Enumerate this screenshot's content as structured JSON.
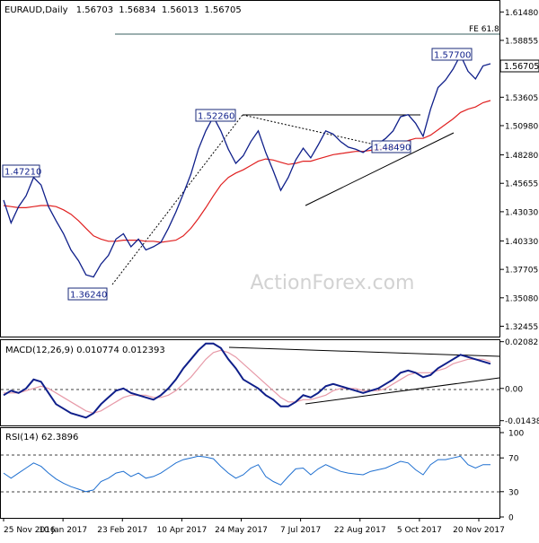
{
  "chart_data": [
    {
      "type": "line",
      "panel": "price",
      "title": "EURAUD,Daily",
      "ohlc": {
        "open": "1.56703",
        "high": "1.56834",
        "low": "1.56013",
        "close": "1.56705"
      },
      "last_price_label": "1.56705",
      "ylim": [
        1.315,
        1.625
      ],
      "y_ticks": [
        "1.61480",
        "1.58855",
        "1.56230",
        "1.53605",
        "1.50980",
        "1.48280",
        "1.45655",
        "1.43030",
        "1.40330",
        "1.37705",
        "1.35080",
        "1.32455"
      ],
      "x_ticks": [
        "25 Nov 2016",
        "10 Jan 2017",
        "23 Feb 2017",
        "10 Apr 2017",
        "24 May 2017",
        "7 Jul 2017",
        "22 Aug 2017",
        "5 Oct 2017",
        "20 Nov 2017"
      ],
      "x": [
        0,
        4,
        8,
        12,
        16,
        20,
        24,
        28,
        32,
        36,
        40,
        44,
        48,
        52,
        56,
        60,
        64,
        68,
        72,
        76,
        80,
        84,
        88,
        92,
        96,
        100,
        104,
        108,
        112,
        116,
        120,
        124,
        128,
        132,
        136,
        140,
        144,
        148,
        152,
        156,
        160,
        164,
        168,
        172,
        176,
        180,
        184,
        188,
        192,
        196,
        200,
        204,
        208,
        212,
        216,
        220,
        224,
        228,
        232,
        236,
        240,
        244,
        248,
        252,
        256,
        260
      ],
      "series": [
        {
          "values": [
            1.441,
            1.42,
            1.435,
            1.445,
            1.462,
            1.455,
            1.435,
            1.422,
            1.41,
            1.395,
            1.385,
            1.372,
            1.37,
            1.382,
            1.39,
            1.405,
            1.41,
            1.398,
            1.405,
            1.395,
            1.398,
            1.402,
            1.415,
            1.43,
            1.447,
            1.465,
            1.488,
            1.505,
            1.518,
            1.505,
            1.488,
            1.475,
            1.482,
            1.495,
            1.505,
            1.485,
            1.468,
            1.45,
            1.462,
            1.478,
            1.489,
            1.48,
            1.492,
            1.505,
            1.502,
            1.495,
            1.49,
            1.488,
            1.485,
            1.49,
            1.493,
            1.498,
            1.505,
            1.518,
            1.52,
            1.512,
            1.5,
            1.525,
            1.545,
            1.552,
            1.562,
            1.575,
            1.56,
            1.553,
            1.565,
            1.567
          ]
        },
        {
          "values": [
            1.436,
            1.435,
            1.434,
            1.434,
            1.435,
            1.436,
            1.436,
            1.435,
            1.432,
            1.428,
            1.422,
            1.415,
            1.408,
            1.405,
            1.403,
            1.403,
            1.404,
            1.404,
            1.404,
            1.403,
            1.403,
            1.402,
            1.403,
            1.404,
            1.408,
            1.415,
            1.424,
            1.434,
            1.445,
            1.455,
            1.462,
            1.466,
            1.469,
            1.473,
            1.477,
            1.479,
            1.478,
            1.476,
            1.474,
            1.475,
            1.477,
            1.477,
            1.479,
            1.481,
            1.483,
            1.484,
            1.485,
            1.486,
            1.486,
            1.487,
            1.488,
            1.489,
            1.49,
            1.493,
            1.496,
            1.498,
            1.498,
            1.501,
            1.506,
            1.511,
            1.516,
            1.522,
            1.525,
            1.527,
            1.531,
            1.533
          ]
        }
      ],
      "annotations": [
        "1.47210",
        "1.36240",
        "1.52260",
        "1.57700",
        "1.48490",
        "FE 61.8"
      ]
    },
    {
      "type": "line",
      "panel": "macd",
      "title": "MACD(12,26,9) 0.010774 0.012393",
      "ylim": [
        -0.0165,
        0.0215
      ],
      "y_ticks": [
        "0.020827",
        "0.00",
        "-0.014386"
      ],
      "series": [
        {
          "values": [
            -0.003,
            -0.001,
            -0.002,
            0.0,
            0.004,
            0.003,
            -0.002,
            -0.007,
            -0.009,
            -0.011,
            -0.012,
            -0.013,
            -0.011,
            -0.007,
            -0.004,
            -0.001,
            0.0,
            -0.002,
            -0.003,
            -0.004,
            -0.005,
            -0.003,
            0.0,
            0.004,
            0.009,
            0.013,
            0.017,
            0.02,
            0.02,
            0.018,
            0.013,
            0.009,
            0.004,
            0.002,
            0.0,
            -0.003,
            -0.005,
            -0.008,
            -0.008,
            -0.006,
            -0.003,
            -0.004,
            -0.002,
            0.001,
            0.002,
            0.001,
            0.0,
            -0.001,
            -0.002,
            -0.001,
            0.0,
            0.002,
            0.004,
            0.007,
            0.008,
            0.007,
            0.005,
            0.006,
            0.009,
            0.011,
            0.013,
            0.015,
            0.014,
            0.013,
            0.012,
            0.011
          ]
        },
        {
          "values": [
            -0.002,
            -0.002,
            -0.002,
            -0.001,
            0.0,
            0.001,
            0.0,
            -0.002,
            -0.004,
            -0.006,
            -0.008,
            -0.01,
            -0.011,
            -0.01,
            -0.008,
            -0.006,
            -0.004,
            -0.003,
            -0.003,
            -0.003,
            -0.004,
            -0.004,
            -0.003,
            -0.001,
            0.002,
            0.005,
            0.009,
            0.013,
            0.016,
            0.017,
            0.016,
            0.014,
            0.011,
            0.008,
            0.005,
            0.002,
            -0.001,
            -0.004,
            -0.006,
            -0.006,
            -0.005,
            -0.005,
            -0.004,
            -0.003,
            -0.001,
            0.0,
            0.0,
            0.0,
            -0.001,
            -0.001,
            -0.001,
            0.0,
            0.002,
            0.004,
            0.006,
            0.007,
            0.007,
            0.007,
            0.008,
            0.009,
            0.011,
            0.012,
            0.013,
            0.013,
            0.013,
            0.012
          ]
        }
      ]
    },
    {
      "type": "line",
      "panel": "rsi",
      "title": "RSI(14) 62.3896",
      "ylim": [
        0,
        100
      ],
      "y_ticks": [
        "100",
        "70",
        "30",
        "0"
      ],
      "series": [
        {
          "values": [
            52,
            46,
            52,
            58,
            64,
            60,
            52,
            45,
            40,
            36,
            33,
            30,
            32,
            42,
            46,
            52,
            54,
            48,
            52,
            46,
            48,
            52,
            58,
            64,
            68,
            70,
            72,
            71,
            69,
            60,
            52,
            46,
            50,
            58,
            62,
            48,
            42,
            38,
            48,
            57,
            58,
            50,
            57,
            62,
            58,
            54,
            52,
            51,
            50,
            54,
            56,
            58,
            62,
            66,
            64,
            56,
            50,
            62,
            68,
            68,
            70,
            72,
            62,
            58,
            62,
            62
          ]
        }
      ]
    }
  ],
  "watermark": "ActionForex.com"
}
